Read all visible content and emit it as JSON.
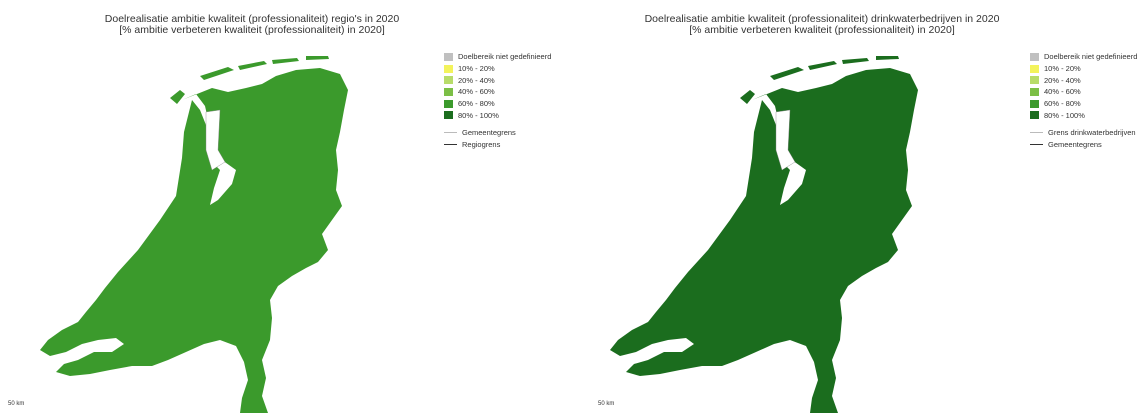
{
  "panels": [
    {
      "title_line1": "Doelrealisatie ambitie kwaliteit (professionaliteit) regio's in 2020",
      "title_line2": "[% ambitie verbeteren kwaliteit (professionaliteit) in 2020]",
      "scale_label": "50 km",
      "legend": {
        "classes": [
          {
            "label": "Doelbereik niet gedefinieerd",
            "color": "#c0c0c0"
          },
          {
            "label": "10% - 20%",
            "color": "#f3f35c"
          },
          {
            "label": "20% - 40%",
            "color": "#b8dc6a"
          },
          {
            "label": "40% - 60%",
            "color": "#7cbf46"
          },
          {
            "label": "60% - 80%",
            "color": "#3b9a2c"
          },
          {
            "label": "80% - 100%",
            "color": "#1b6d1e"
          }
        ],
        "lines": [
          {
            "label": "Gemeentegrens",
            "color": "#bbbbbb"
          },
          {
            "label": "Regiogrens",
            "color": "#333333"
          }
        ]
      }
    },
    {
      "title_line1": "Doelrealisatie ambitie kwaliteit (professionaliteit) drinkwaterbedrijven in 2020",
      "title_line2": "[% ambitie verbeteren kwaliteit (professionaliteit) in 2020]",
      "scale_label": "50 km",
      "legend": {
        "classes": [
          {
            "label": "Doelbereik niet gedefinieerd",
            "color": "#c0c0c0"
          },
          {
            "label": "10% - 20%",
            "color": "#f3f35c"
          },
          {
            "label": "20% - 40%",
            "color": "#b8dc6a"
          },
          {
            "label": "40% - 60%",
            "color": "#7cbf46"
          },
          {
            "label": "60% - 80%",
            "color": "#3b9a2c"
          },
          {
            "label": "80% - 100%",
            "color": "#1b6d1e"
          }
        ],
        "lines": [
          {
            "label": "Grens drinkwaterbedrijven",
            "color": "#bbbbbb"
          },
          {
            "label": "Gemeentegrens",
            "color": "#333333"
          }
        ]
      }
    }
  ],
  "colors": {
    "dark_green": "#1b6d1e",
    "mid_green": "#3b9a2c",
    "light_green": "#7cbf46",
    "pale_green": "#a8d063",
    "grey": "#c0c0c0",
    "water": "#ffffff"
  }
}
